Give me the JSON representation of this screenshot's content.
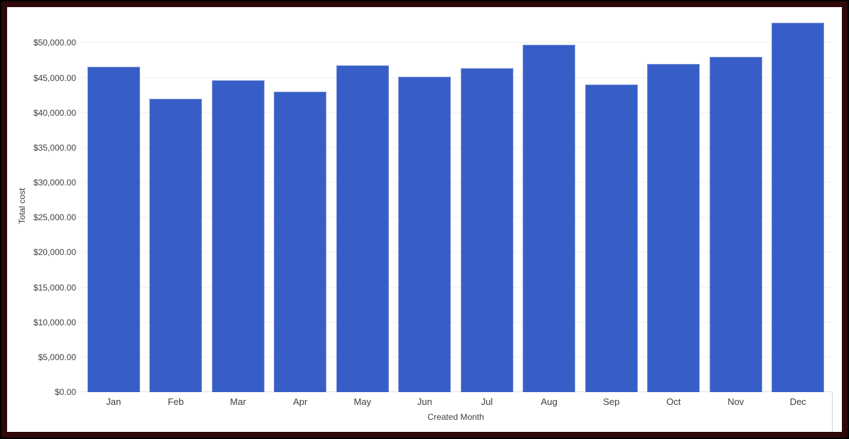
{
  "chart_data": {
    "type": "bar",
    "title": "",
    "categories": [
      "Jan",
      "Feb",
      "Mar",
      "Apr",
      "May",
      "Jun",
      "Jul",
      "Aug",
      "Sep",
      "Oct",
      "Nov",
      "Dec"
    ],
    "values": [
      46600,
      42000,
      44700,
      43000,
      46800,
      45200,
      46400,
      49700,
      44000,
      47000,
      48000,
      52900
    ],
    "xlabel": "Created Month",
    "ylabel": "Total cost",
    "ylim": [
      0,
      50000
    ],
    "y_tick_interval": 5000,
    "y_tick_labels": [
      "$0.00",
      "$5,000.00",
      "$10,000.00",
      "$15,000.00",
      "$20,000.00",
      "$25,000.00",
      "$30,000.00",
      "$35,000.00",
      "$40,000.00",
      "$45,000.00",
      "$50,000.00"
    ],
    "legend": "none",
    "grid": true
  },
  "colors": {
    "bar_fill": "#365EC6",
    "bar_edge": "#7E92D9",
    "gridline": "#F0F0F0",
    "baseline": "#E2E2E2",
    "axis_text": "#3C4043",
    "frame_border": "#2E0808",
    "frame_outer": "#000000",
    "background": "#FFFFFF"
  }
}
